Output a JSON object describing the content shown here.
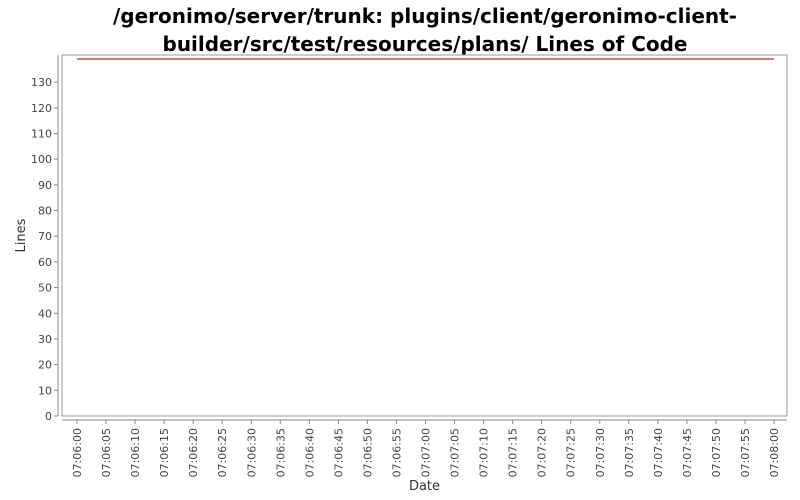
{
  "title": {
    "line1": "/geronimo/server/trunk: plugins/client/geronimo-client-",
    "line2": "builder/src/test/resources/plans/ Lines of Code"
  },
  "colors": {
    "plot_border": "#999999",
    "axis": "#888888",
    "series_line": "#8b0000",
    "background": "#ffffff"
  },
  "chart_data": {
    "type": "line",
    "title": "/geronimo/server/trunk: plugins/client/geronimo-client-builder/src/test/resources/plans/ Lines of Code",
    "xlabel": "Date",
    "ylabel": "Lines",
    "ylim": [
      0,
      139
    ],
    "yticks": [
      0,
      10,
      20,
      30,
      40,
      50,
      60,
      70,
      80,
      90,
      100,
      110,
      120,
      130
    ],
    "xticks": [
      "07:06:00",
      "07:06:05",
      "07:06:10",
      "07:06:15",
      "07:06:20",
      "07:06:25",
      "07:06:30",
      "07:06:35",
      "07:06:40",
      "07:06:45",
      "07:06:50",
      "07:06:55",
      "07:07:00",
      "07:07:05",
      "07:07:10",
      "07:07:15",
      "07:07:20",
      "07:07:25",
      "07:07:30",
      "07:07:35",
      "07:07:40",
      "07:07:45",
      "07:07:50",
      "07:07:55",
      "07:08:00"
    ],
    "grid": false,
    "series": [
      {
        "x": [
          "07:06:00",
          "07:08:00"
        ],
        "values": [
          139,
          139
        ]
      }
    ]
  }
}
